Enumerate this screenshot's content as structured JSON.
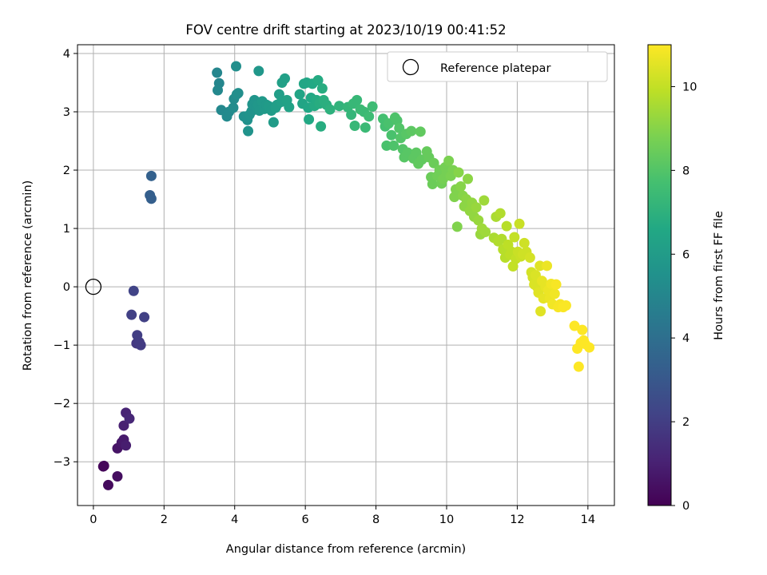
{
  "chart_data": {
    "type": "scatter",
    "title": "FOV centre drift starting at 2023/10/19 00:41:52",
    "xlabel": "Angular distance from reference (arcmin)",
    "ylabel": "Rotation from reference (arcmin)",
    "xlim": [
      -0.45,
      14.75
    ],
    "ylim": [
      -3.75,
      4.15
    ],
    "xticks": [
      0,
      2,
      4,
      6,
      8,
      10,
      12,
      14
    ],
    "yticks": [
      -3,
      -2,
      -1,
      0,
      1,
      2,
      3,
      4
    ],
    "grid": true,
    "legend": {
      "placement": "top-right",
      "entries": [
        "Reference platepar"
      ]
    },
    "reference_point": {
      "x": 0,
      "y": 0,
      "marker": "open-circle",
      "label": "Reference platepar"
    },
    "colorbar": {
      "label": "Hours from first FF file",
      "colormap": "viridis",
      "range": [
        0,
        11
      ],
      "ticks": [
        0,
        2,
        4,
        6,
        8,
        10
      ]
    },
    "points": [
      {
        "x": 0.28,
        "y": -3.08,
        "c": 0.1
      },
      {
        "x": 0.3,
        "y": -3.07,
        "c": 0.2
      },
      {
        "x": 0.42,
        "y": -3.4,
        "c": 0.3
      },
      {
        "x": 0.68,
        "y": -3.25,
        "c": 0.4
      },
      {
        "x": 0.68,
        "y": -2.77,
        "c": 0.6
      },
      {
        "x": 0.8,
        "y": -2.67,
        "c": 0.7
      },
      {
        "x": 0.86,
        "y": -2.62,
        "c": 0.8
      },
      {
        "x": 0.92,
        "y": -2.72,
        "c": 0.9
      },
      {
        "x": 0.86,
        "y": -2.38,
        "c": 1.0
      },
      {
        "x": 0.92,
        "y": -2.16,
        "c": 1.1
      },
      {
        "x": 1.02,
        "y": -2.26,
        "c": 1.2
      },
      {
        "x": 1.22,
        "y": -0.97,
        "c": 1.8
      },
      {
        "x": 1.34,
        "y": -1.0,
        "c": 1.9
      },
      {
        "x": 1.3,
        "y": -0.95,
        "c": 1.9
      },
      {
        "x": 1.24,
        "y": -0.83,
        "c": 2.0
      },
      {
        "x": 1.08,
        "y": -0.48,
        "c": 2.1
      },
      {
        "x": 1.44,
        "y": -0.52,
        "c": 2.1
      },
      {
        "x": 1.14,
        "y": -0.07,
        "c": 2.2
      },
      {
        "x": 1.6,
        "y": 1.57,
        "c": 3.3
      },
      {
        "x": 1.64,
        "y": 1.51,
        "c": 3.3
      },
      {
        "x": 1.64,
        "y": 1.9,
        "c": 3.4
      },
      {
        "x": 3.5,
        "y": 3.67,
        "c": 5.0
      },
      {
        "x": 3.56,
        "y": 3.49,
        "c": 5.0
      },
      {
        "x": 3.52,
        "y": 3.37,
        "c": 5.1
      },
      {
        "x": 3.62,
        "y": 3.03,
        "c": 5.1
      },
      {
        "x": 3.78,
        "y": 2.92,
        "c": 5.2
      },
      {
        "x": 3.84,
        "y": 3.0,
        "c": 5.2
      },
      {
        "x": 3.96,
        "y": 3.07,
        "c": 5.3
      },
      {
        "x": 3.98,
        "y": 3.22,
        "c": 5.3
      },
      {
        "x": 4.04,
        "y": 3.78,
        "c": 5.4
      },
      {
        "x": 4.06,
        "y": 3.3,
        "c": 5.4
      },
      {
        "x": 4.1,
        "y": 3.32,
        "c": 5.4
      },
      {
        "x": 4.26,
        "y": 2.92,
        "c": 5.5
      },
      {
        "x": 4.36,
        "y": 2.86,
        "c": 5.5
      },
      {
        "x": 4.42,
        "y": 2.95,
        "c": 5.6
      },
      {
        "x": 4.38,
        "y": 2.67,
        "c": 5.6
      },
      {
        "x": 4.48,
        "y": 3.01,
        "c": 5.6
      },
      {
        "x": 4.5,
        "y": 3.13,
        "c": 5.7
      },
      {
        "x": 4.56,
        "y": 3.2,
        "c": 5.7
      },
      {
        "x": 4.62,
        "y": 3.08,
        "c": 5.7
      },
      {
        "x": 4.66,
        "y": 3.12,
        "c": 5.8
      },
      {
        "x": 4.68,
        "y": 3.7,
        "c": 5.8
      },
      {
        "x": 4.7,
        "y": 3.02,
        "c": 5.8
      },
      {
        "x": 4.78,
        "y": 3.18,
        "c": 5.9
      },
      {
        "x": 4.84,
        "y": 3.05,
        "c": 5.9
      },
      {
        "x": 4.9,
        "y": 3.12,
        "c": 5.9
      },
      {
        "x": 4.96,
        "y": 3.1,
        "c": 6.0
      },
      {
        "x": 5.04,
        "y": 3.02,
        "c": 6.0
      },
      {
        "x": 5.1,
        "y": 2.82,
        "c": 6.0
      },
      {
        "x": 5.16,
        "y": 3.07,
        "c": 6.1
      },
      {
        "x": 5.2,
        "y": 3.12,
        "c": 6.1
      },
      {
        "x": 5.26,
        "y": 3.3,
        "c": 6.1
      },
      {
        "x": 5.32,
        "y": 3.17,
        "c": 6.2
      },
      {
        "x": 5.34,
        "y": 3.5,
        "c": 6.2
      },
      {
        "x": 5.42,
        "y": 3.57,
        "c": 6.2
      },
      {
        "x": 5.48,
        "y": 3.2,
        "c": 6.3
      },
      {
        "x": 5.54,
        "y": 3.08,
        "c": 6.3
      },
      {
        "x": 5.84,
        "y": 3.3,
        "c": 6.4
      },
      {
        "x": 5.92,
        "y": 3.14,
        "c": 6.4
      },
      {
        "x": 5.96,
        "y": 3.48,
        "c": 6.5
      },
      {
        "x": 6.04,
        "y": 3.5,
        "c": 6.5
      },
      {
        "x": 6.08,
        "y": 3.07,
        "c": 6.5
      },
      {
        "x": 6.1,
        "y": 2.87,
        "c": 6.6
      },
      {
        "x": 6.16,
        "y": 3.24,
        "c": 6.6
      },
      {
        "x": 6.2,
        "y": 3.48,
        "c": 6.6
      },
      {
        "x": 6.26,
        "y": 3.1,
        "c": 6.7
      },
      {
        "x": 6.32,
        "y": 3.2,
        "c": 6.7
      },
      {
        "x": 6.36,
        "y": 3.54,
        "c": 6.7
      },
      {
        "x": 6.4,
        "y": 3.14,
        "c": 6.8
      },
      {
        "x": 6.44,
        "y": 2.75,
        "c": 6.8
      },
      {
        "x": 6.48,
        "y": 3.4,
        "c": 6.8
      },
      {
        "x": 6.52,
        "y": 3.2,
        "c": 6.9
      },
      {
        "x": 6.6,
        "y": 3.12,
        "c": 6.9
      },
      {
        "x": 6.7,
        "y": 3.04,
        "c": 7.0
      },
      {
        "x": 6.96,
        "y": 3.1,
        "c": 7.1
      },
      {
        "x": 7.2,
        "y": 3.08,
        "c": 7.2
      },
      {
        "x": 7.3,
        "y": 2.95,
        "c": 7.2
      },
      {
        "x": 7.36,
        "y": 3.14,
        "c": 7.3
      },
      {
        "x": 7.4,
        "y": 2.76,
        "c": 7.3
      },
      {
        "x": 7.46,
        "y": 3.2,
        "c": 7.3
      },
      {
        "x": 7.56,
        "y": 3.04,
        "c": 7.4
      },
      {
        "x": 7.66,
        "y": 3.0,
        "c": 7.4
      },
      {
        "x": 7.7,
        "y": 2.73,
        "c": 7.4
      },
      {
        "x": 7.8,
        "y": 2.92,
        "c": 7.5
      },
      {
        "x": 7.9,
        "y": 3.09,
        "c": 7.5
      },
      {
        "x": 8.2,
        "y": 2.88,
        "c": 7.7
      },
      {
        "x": 8.26,
        "y": 2.75,
        "c": 7.7
      },
      {
        "x": 8.3,
        "y": 2.42,
        "c": 7.8
      },
      {
        "x": 8.36,
        "y": 2.8,
        "c": 7.8
      },
      {
        "x": 8.44,
        "y": 2.6,
        "c": 7.8
      },
      {
        "x": 8.5,
        "y": 2.42,
        "c": 7.9
      },
      {
        "x": 8.54,
        "y": 2.9,
        "c": 7.9
      },
      {
        "x": 8.6,
        "y": 2.85,
        "c": 7.9
      },
      {
        "x": 8.66,
        "y": 2.72,
        "c": 8.0
      },
      {
        "x": 8.7,
        "y": 2.55,
        "c": 8.0
      },
      {
        "x": 8.76,
        "y": 2.36,
        "c": 8.0
      },
      {
        "x": 8.8,
        "y": 2.22,
        "c": 8.1
      },
      {
        "x": 8.86,
        "y": 2.62,
        "c": 8.1
      },
      {
        "x": 8.9,
        "y": 2.3,
        "c": 8.1
      },
      {
        "x": 9.0,
        "y": 2.67,
        "c": 8.2
      },
      {
        "x": 9.06,
        "y": 2.2,
        "c": 8.2
      },
      {
        "x": 9.14,
        "y": 2.3,
        "c": 8.2
      },
      {
        "x": 9.2,
        "y": 2.11,
        "c": 8.3
      },
      {
        "x": 9.26,
        "y": 2.66,
        "c": 8.3
      },
      {
        "x": 9.3,
        "y": 2.18,
        "c": 8.3
      },
      {
        "x": 9.44,
        "y": 2.32,
        "c": 8.4
      },
      {
        "x": 9.5,
        "y": 2.22,
        "c": 8.4
      },
      {
        "x": 9.56,
        "y": 1.88,
        "c": 8.5
      },
      {
        "x": 9.6,
        "y": 1.76,
        "c": 8.5
      },
      {
        "x": 9.64,
        "y": 2.12,
        "c": 8.5
      },
      {
        "x": 9.74,
        "y": 1.9,
        "c": 8.6
      },
      {
        "x": 9.8,
        "y": 2.0,
        "c": 8.6
      },
      {
        "x": 9.86,
        "y": 1.77,
        "c": 8.6
      },
      {
        "x": 9.9,
        "y": 1.85,
        "c": 8.7
      },
      {
        "x": 9.96,
        "y": 2.05,
        "c": 8.7
      },
      {
        "x": 10.0,
        "y": 1.95,
        "c": 8.7
      },
      {
        "x": 10.06,
        "y": 2.16,
        "c": 8.8
      },
      {
        "x": 10.12,
        "y": 1.9,
        "c": 8.8
      },
      {
        "x": 10.18,
        "y": 2.0,
        "c": 8.8
      },
      {
        "x": 10.22,
        "y": 1.54,
        "c": 8.9
      },
      {
        "x": 10.26,
        "y": 1.67,
        "c": 8.9
      },
      {
        "x": 10.3,
        "y": 1.03,
        "c": 8.9
      },
      {
        "x": 10.34,
        "y": 1.96,
        "c": 9.0
      },
      {
        "x": 10.4,
        "y": 1.72,
        "c": 9.0
      },
      {
        "x": 10.46,
        "y": 1.56,
        "c": 9.0
      },
      {
        "x": 10.5,
        "y": 1.38,
        "c": 9.1
      },
      {
        "x": 10.56,
        "y": 1.5,
        "c": 9.1
      },
      {
        "x": 10.6,
        "y": 1.85,
        "c": 9.1
      },
      {
        "x": 10.66,
        "y": 1.3,
        "c": 9.2
      },
      {
        "x": 10.72,
        "y": 1.44,
        "c": 9.2
      },
      {
        "x": 10.78,
        "y": 1.2,
        "c": 9.2
      },
      {
        "x": 10.84,
        "y": 1.36,
        "c": 9.3
      },
      {
        "x": 10.9,
        "y": 1.14,
        "c": 9.3
      },
      {
        "x": 10.96,
        "y": 0.9,
        "c": 9.3
      },
      {
        "x": 11.0,
        "y": 1.0,
        "c": 9.4
      },
      {
        "x": 11.06,
        "y": 1.48,
        "c": 9.4
      },
      {
        "x": 11.1,
        "y": 0.94,
        "c": 9.4
      },
      {
        "x": 11.34,
        "y": 0.84,
        "c": 9.6
      },
      {
        "x": 11.4,
        "y": 1.2,
        "c": 9.6
      },
      {
        "x": 11.46,
        "y": 0.78,
        "c": 9.7
      },
      {
        "x": 11.52,
        "y": 1.26,
        "c": 9.7
      },
      {
        "x": 11.56,
        "y": 0.82,
        "c": 9.7
      },
      {
        "x": 11.6,
        "y": 0.64,
        "c": 9.8
      },
      {
        "x": 11.66,
        "y": 0.5,
        "c": 9.8
      },
      {
        "x": 11.7,
        "y": 1.04,
        "c": 9.8
      },
      {
        "x": 11.74,
        "y": 0.72,
        "c": 9.9
      },
      {
        "x": 11.8,
        "y": 0.55,
        "c": 9.9
      },
      {
        "x": 11.84,
        "y": 0.6,
        "c": 9.9
      },
      {
        "x": 11.88,
        "y": 0.35,
        "c": 10.0
      },
      {
        "x": 11.92,
        "y": 0.85,
        "c": 10.0
      },
      {
        "x": 11.96,
        "y": 0.48,
        "c": 10.0
      },
      {
        "x": 12.02,
        "y": 0.6,
        "c": 10.1
      },
      {
        "x": 12.06,
        "y": 1.08,
        "c": 10.1
      },
      {
        "x": 12.1,
        "y": 0.52,
        "c": 10.1
      },
      {
        "x": 12.16,
        "y": 0.56,
        "c": 10.2
      },
      {
        "x": 12.2,
        "y": 0.75,
        "c": 10.2
      },
      {
        "x": 12.26,
        "y": 0.6,
        "c": 10.2
      },
      {
        "x": 12.36,
        "y": 0.5,
        "c": 10.3
      },
      {
        "x": 12.4,
        "y": 0.25,
        "c": 10.3
      },
      {
        "x": 12.44,
        "y": 0.16,
        "c": 10.3
      },
      {
        "x": 12.48,
        "y": 0.04,
        "c": 10.4
      },
      {
        "x": 12.52,
        "y": 0.2,
        "c": 10.4
      },
      {
        "x": 12.56,
        "y": 0.0,
        "c": 10.4
      },
      {
        "x": 12.6,
        "y": -0.1,
        "c": 10.5
      },
      {
        "x": 12.64,
        "y": 0.36,
        "c": 10.5
      },
      {
        "x": 12.66,
        "y": -0.42,
        "c": 10.5
      },
      {
        "x": 12.7,
        "y": 0.1,
        "c": 10.6
      },
      {
        "x": 12.74,
        "y": -0.2,
        "c": 10.6
      },
      {
        "x": 12.8,
        "y": 0.0,
        "c": 10.6
      },
      {
        "x": 12.84,
        "y": 0.36,
        "c": 10.7
      },
      {
        "x": 12.88,
        "y": -0.06,
        "c": 10.7
      },
      {
        "x": 12.92,
        "y": -0.2,
        "c": 10.7
      },
      {
        "x": 12.96,
        "y": 0.05,
        "c": 10.8
      },
      {
        "x": 13.0,
        "y": -0.3,
        "c": 10.8
      },
      {
        "x": 13.06,
        "y": -0.12,
        "c": 10.8
      },
      {
        "x": 13.1,
        "y": 0.04,
        "c": 10.9
      },
      {
        "x": 13.16,
        "y": -0.35,
        "c": 10.9
      },
      {
        "x": 13.22,
        "y": -0.3,
        "c": 10.9
      },
      {
        "x": 13.3,
        "y": -0.35,
        "c": 10.95
      },
      {
        "x": 13.38,
        "y": -0.32,
        "c": 10.95
      },
      {
        "x": 13.62,
        "y": -0.67,
        "c": 11.0
      },
      {
        "x": 13.7,
        "y": -1.06,
        "c": 11.0
      },
      {
        "x": 13.74,
        "y": -1.37,
        "c": 11.0
      },
      {
        "x": 13.8,
        "y": -0.96,
        "c": 11.0
      },
      {
        "x": 13.84,
        "y": -0.74,
        "c": 11.0
      },
      {
        "x": 13.88,
        "y": -0.92,
        "c": 11.0
      },
      {
        "x": 13.92,
        "y": -0.98,
        "c": 11.0
      },
      {
        "x": 14.04,
        "y": -1.04,
        "c": 11.0
      }
    ]
  }
}
